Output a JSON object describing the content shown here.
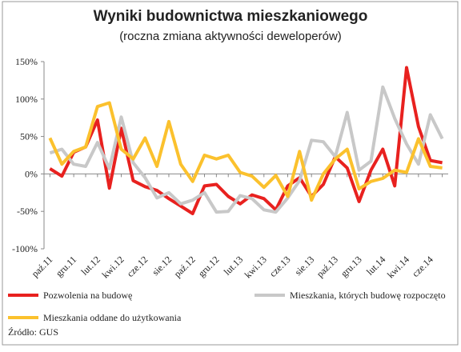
{
  "chart_data": {
    "type": "line",
    "title": "Wyniki budownictwa mieszkaniowego",
    "subtitle": "(roczna zmiana aktywności deweloperów)",
    "source": "Źródło: GUS",
    "categories": [
      "paź.11",
      null,
      "gru.11",
      null,
      "lut.12",
      null,
      "kwi.12",
      null,
      "cze.12",
      null,
      "sie.12",
      null,
      "paź.12",
      null,
      "gru.12",
      null,
      "lut.13",
      null,
      "kwi.13",
      null,
      "cze.13",
      null,
      "sie.13",
      null,
      "paź.13",
      null,
      "gru.13",
      null,
      "lut.14",
      null,
      "kwi.14",
      null,
      "cze.14",
      null
    ],
    "ylim": [
      -100,
      150
    ],
    "yticks": [
      {
        "value": -100,
        "label": "-100%"
      },
      {
        "value": -50,
        "label": "-50%"
      },
      {
        "value": 0,
        "label": "0%"
      },
      {
        "value": 50,
        "label": "50%"
      },
      {
        "value": 100,
        "label": "100%"
      },
      {
        "value": 150,
        "label": "150%"
      }
    ],
    "series": [
      {
        "name": "Pozwolenia na budowę",
        "color": "#e8211f",
        "values": [
          7,
          -3,
          29,
          36,
          72,
          -19,
          61,
          -9,
          -17,
          -22,
          -33,
          -43,
          -53,
          -16,
          -14,
          -30,
          -40,
          -28,
          -33,
          -48,
          -16,
          -5,
          -30,
          -14,
          23,
          8,
          -37,
          5,
          33,
          -16,
          142,
          63,
          18,
          15
        ]
      },
      {
        "name": "Mieszkania, których budowę rozpoczęto",
        "color": "#c8c8c8",
        "values": [
          28,
          33,
          13,
          10,
          42,
          7,
          76,
          15,
          -5,
          -32,
          -25,
          -40,
          -35,
          -25,
          -51,
          -50,
          -29,
          -33,
          -48,
          -51,
          -32,
          -9,
          45,
          43,
          23,
          82,
          5,
          17,
          116,
          74,
          40,
          13,
          79,
          47
        ]
      },
      {
        "name": "Mieszkania oddane do użytkowania",
        "color": "#fbc12d",
        "values": [
          48,
          13,
          30,
          36,
          90,
          95,
          33,
          20,
          48,
          10,
          70,
          13,
          -10,
          25,
          20,
          25,
          2,
          -3,
          -18,
          -2,
          -30,
          30,
          -35,
          0,
          20,
          33,
          -20,
          -10,
          -6,
          5,
          2,
          47,
          10,
          8
        ]
      }
    ]
  }
}
